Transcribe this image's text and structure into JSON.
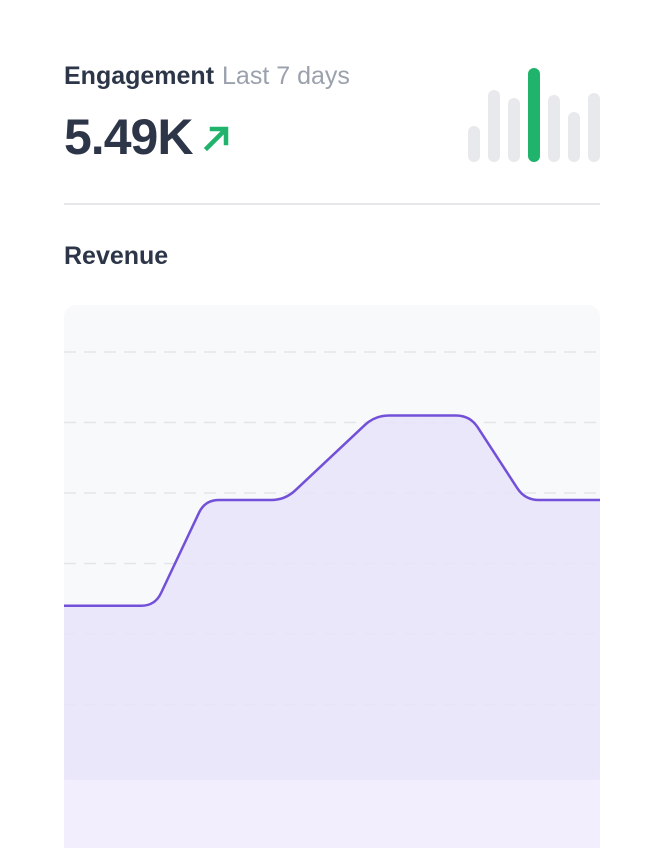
{
  "header": {
    "title": "Engagement",
    "period": "Last 7 days",
    "value": "5.49K",
    "trend_icon": "arrow-up-right-icon",
    "trend_color": "#1fb36b"
  },
  "section": {
    "title": "Revenue"
  },
  "chart_data": [
    {
      "type": "bar",
      "description_role": "sparkline",
      "values": [
        36,
        72,
        64,
        94,
        67,
        50,
        69
      ],
      "highlight_index": 3,
      "colors": {
        "bar": "#e8e9ec",
        "highlight": "#1fb36b"
      }
    },
    {
      "type": "area",
      "title": "Revenue",
      "values": [
        2.4,
        2.4,
        3.9,
        3.9,
        5.1,
        5.1,
        3.9,
        3.9
      ],
      "grid": true,
      "colors": {
        "line": "#7350d8",
        "fill": "#e9e4f9",
        "card": "#f8f9fa"
      }
    }
  ]
}
